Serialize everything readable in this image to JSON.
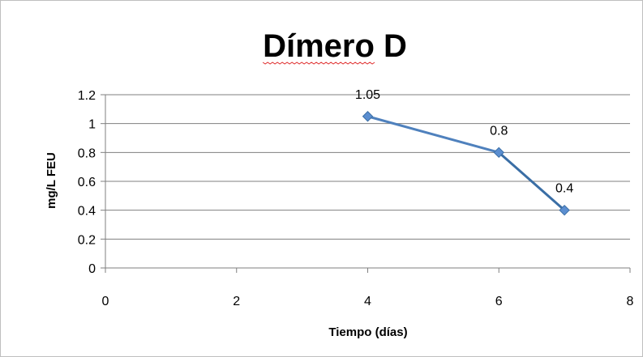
{
  "chart_data": {
    "type": "scatter",
    "title": "Dímero D",
    "xlabel": "Tiempo (días)",
    "ylabel": "mg/L FEU",
    "xlim": [
      0,
      8
    ],
    "ylim": [
      0,
      1.2
    ],
    "x_ticks": [
      "0",
      "2",
      "4",
      "6",
      "8"
    ],
    "y_ticks": [
      "0",
      "0.2",
      "0.4",
      "0.6",
      "0.8",
      "1",
      "1.2"
    ],
    "grid": true,
    "legend": "none",
    "series": [
      {
        "x": [
          4,
          6,
          7
        ],
        "y": [
          1.05,
          0.8,
          0.4
        ],
        "labels": [
          "1.05",
          "0.8",
          "0.4"
        ],
        "color": "#4f81bd"
      }
    ]
  }
}
